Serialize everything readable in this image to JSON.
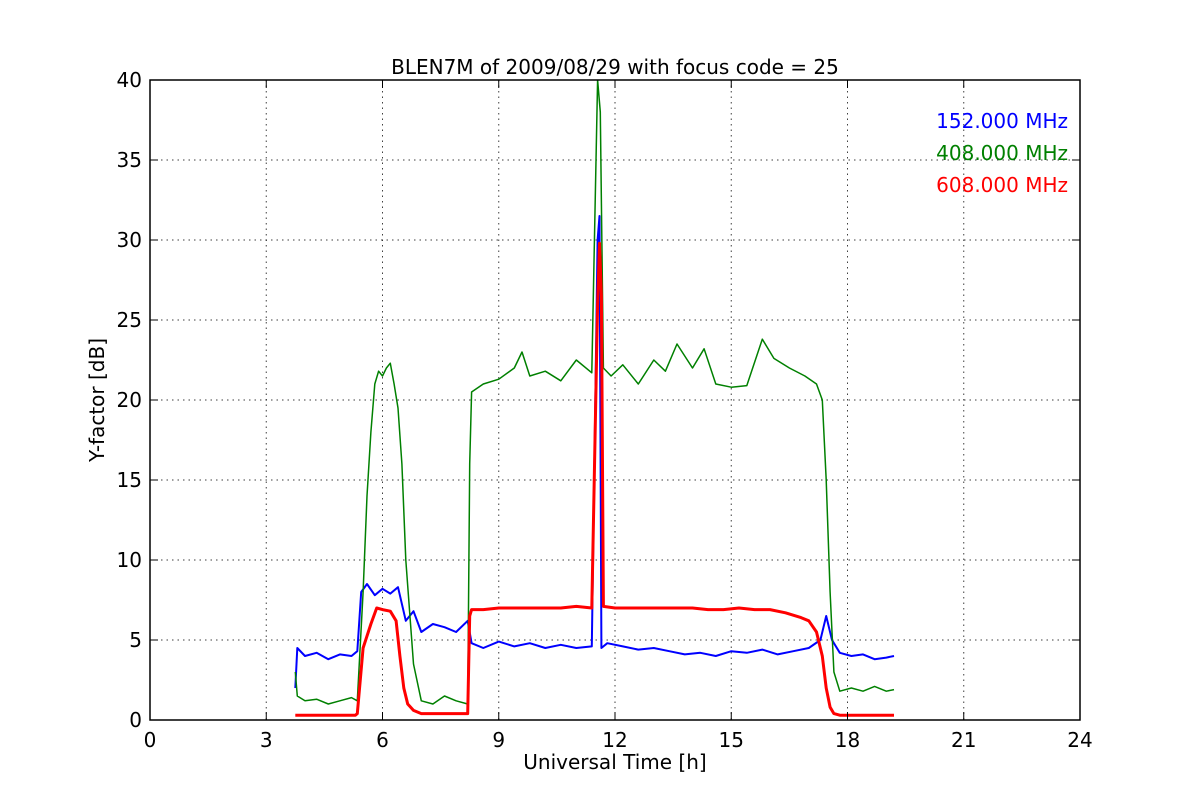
{
  "chart_data": {
    "type": "line",
    "title": "BLEN7M of 2009/08/29 with focus code = 25",
    "xlabel": "Universal Time [h]",
    "ylabel": "Y-factor [dB]",
    "xlim": [
      0,
      24
    ],
    "ylim": [
      0,
      40
    ],
    "xticks": [
      0,
      3,
      6,
      9,
      12,
      15,
      18,
      21,
      24
    ],
    "yticks": [
      0,
      5,
      10,
      15,
      20,
      25,
      30,
      35,
      40
    ],
    "grid": true,
    "legend_position": "top-right",
    "series": [
      {
        "name": "152.000 MHz",
        "color": "#0000ff",
        "x": [
          3.75,
          3.8,
          4.0,
          4.3,
          4.6,
          4.9,
          5.2,
          5.35,
          5.45,
          5.6,
          5.8,
          6.0,
          6.2,
          6.4,
          6.6,
          6.8,
          7.0,
          7.3,
          7.6,
          7.9,
          8.2,
          8.3,
          8.6,
          9.0,
          9.4,
          9.8,
          10.2,
          10.6,
          11.0,
          11.4,
          11.55,
          11.6,
          11.65,
          11.8,
          12.2,
          12.6,
          13.0,
          13.4,
          13.8,
          14.2,
          14.6,
          15.0,
          15.4,
          15.8,
          16.2,
          16.6,
          17.0,
          17.3,
          17.45,
          17.6,
          17.8,
          18.1,
          18.4,
          18.7,
          19.0,
          19.2
        ],
        "y": [
          2.0,
          4.5,
          4.0,
          4.2,
          3.8,
          4.1,
          4.0,
          4.3,
          8.0,
          8.5,
          7.8,
          8.2,
          7.9,
          8.3,
          6.2,
          6.8,
          5.5,
          6.0,
          5.8,
          5.5,
          6.2,
          4.8,
          4.5,
          4.9,
          4.6,
          4.8,
          4.5,
          4.7,
          4.5,
          4.6,
          30.0,
          31.5,
          4.5,
          4.8,
          4.6,
          4.4,
          4.5,
          4.3,
          4.1,
          4.2,
          4.0,
          4.3,
          4.2,
          4.4,
          4.1,
          4.3,
          4.5,
          5.0,
          6.5,
          5.0,
          4.2,
          4.0,
          4.1,
          3.8,
          3.9,
          4.0
        ]
      },
      {
        "name": "408.000 MHz",
        "color": "#008000",
        "x": [
          3.75,
          3.8,
          4.0,
          4.3,
          4.6,
          4.9,
          5.2,
          5.35,
          5.5,
          5.6,
          5.7,
          5.8,
          5.9,
          6.0,
          6.1,
          6.2,
          6.3,
          6.4,
          6.5,
          6.6,
          6.8,
          7.0,
          7.3,
          7.6,
          7.9,
          8.2,
          8.25,
          8.3,
          8.6,
          9.0,
          9.4,
          9.6,
          9.8,
          10.2,
          10.6,
          11.0,
          11.4,
          11.55,
          11.62,
          11.7,
          11.9,
          12.2,
          12.6,
          13.0,
          13.3,
          13.6,
          14.0,
          14.3,
          14.6,
          15.0,
          15.4,
          15.8,
          16.1,
          16.5,
          16.9,
          17.2,
          17.35,
          17.45,
          17.55,
          17.65,
          17.8,
          18.1,
          18.4,
          18.7,
          19.0,
          19.2
        ],
        "y": [
          3.0,
          1.5,
          1.2,
          1.3,
          1.0,
          1.2,
          1.4,
          1.2,
          8.0,
          14.0,
          18.0,
          21.0,
          21.8,
          21.5,
          22.0,
          22.3,
          21.0,
          19.5,
          16.0,
          10.0,
          3.5,
          1.2,
          1.0,
          1.5,
          1.2,
          1.0,
          16.0,
          20.5,
          21.0,
          21.3,
          22.0,
          23.0,
          21.5,
          21.8,
          21.2,
          22.5,
          21.7,
          40.0,
          38.0,
          22.0,
          21.5,
          22.2,
          21.0,
          22.5,
          21.8,
          23.5,
          22.0,
          23.2,
          21.0,
          20.8,
          20.9,
          23.8,
          22.6,
          22.0,
          21.5,
          21.0,
          20.0,
          15.0,
          8.0,
          3.0,
          1.8,
          2.0,
          1.8,
          2.1,
          1.8,
          1.9
        ]
      },
      {
        "name": "608.000 MHz",
        "color": "#ff0000",
        "x": [
          3.75,
          3.8,
          4.0,
          4.5,
          5.0,
          5.3,
          5.35,
          5.5,
          5.7,
          5.85,
          6.0,
          6.2,
          6.35,
          6.45,
          6.55,
          6.65,
          6.8,
          7.0,
          7.3,
          7.6,
          7.9,
          8.2,
          8.25,
          8.3,
          8.6,
          9.0,
          9.4,
          9.8,
          10.2,
          10.6,
          11.0,
          11.4,
          11.55,
          11.6,
          11.65,
          11.7,
          12.0,
          12.4,
          12.8,
          13.2,
          13.6,
          14.0,
          14.4,
          14.8,
          15.2,
          15.6,
          16.0,
          16.4,
          16.8,
          17.0,
          17.2,
          17.35,
          17.45,
          17.55,
          17.65,
          17.8,
          18.1,
          18.4,
          18.7,
          19.0,
          19.2
        ],
        "y": [
          0.3,
          0.3,
          0.3,
          0.3,
          0.3,
          0.3,
          0.4,
          4.5,
          6.0,
          7.0,
          6.9,
          6.8,
          6.2,
          4.0,
          2.0,
          1.0,
          0.6,
          0.4,
          0.4,
          0.4,
          0.4,
          0.4,
          6.5,
          6.9,
          6.9,
          7.0,
          7.0,
          7.0,
          7.0,
          7.0,
          7.1,
          7.0,
          26.0,
          29.8,
          26.5,
          7.1,
          7.0,
          7.0,
          7.0,
          7.0,
          7.0,
          7.0,
          6.9,
          6.9,
          7.0,
          6.9,
          6.9,
          6.7,
          6.4,
          6.2,
          5.5,
          4.0,
          2.0,
          0.8,
          0.4,
          0.3,
          0.3,
          0.3,
          0.3,
          0.3,
          0.3
        ]
      }
    ]
  }
}
